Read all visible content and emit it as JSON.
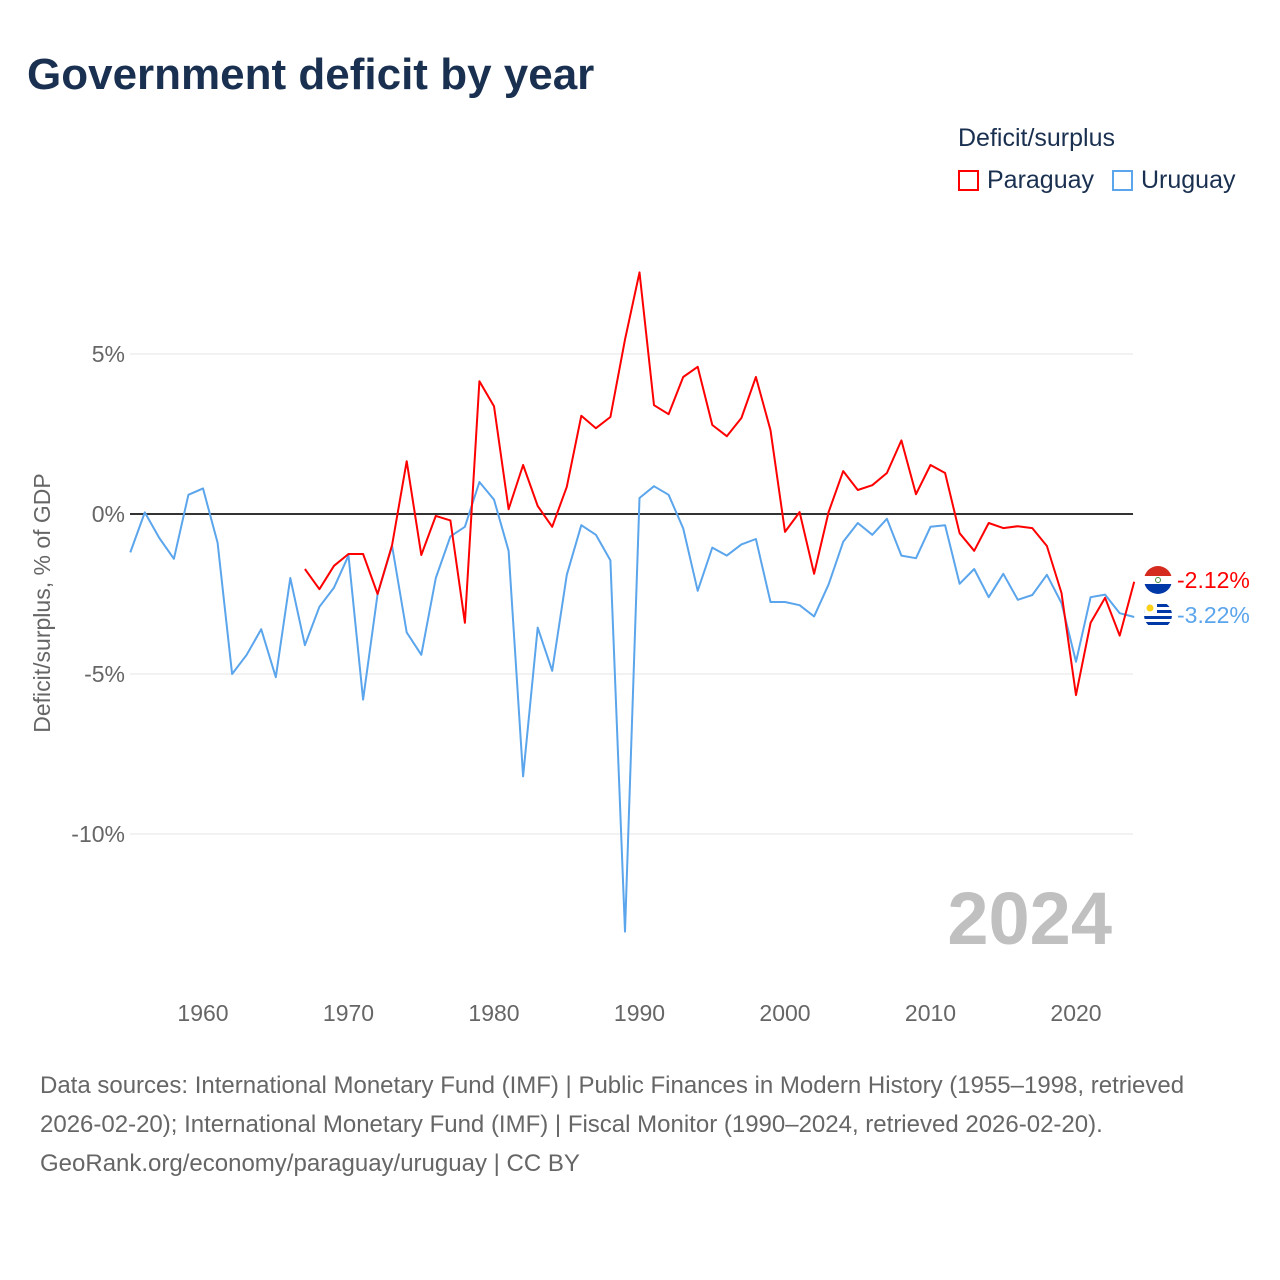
{
  "title": "Government deficit by year",
  "legend": {
    "title": "Deficit/surplus",
    "items": [
      {
        "name": "Paraguay",
        "color": "#ff0000"
      },
      {
        "name": "Uruguay",
        "color": "#5aa5ec"
      }
    ]
  },
  "year_watermark": "2024",
  "sources": {
    "line1": "Data sources: International Monetary Fund (IMF) | Public Finances in Modern History (1955–1998, retrieved 2026-02-20); International Monetary Fund (IMF) | Fiscal Monitor (1990–2024, retrieved 2026-02-20).",
    "line2": "GeoRank.org/economy/paraguay/uruguay | CC BY"
  },
  "chart_data": {
    "type": "line",
    "title": "Government deficit by year",
    "xlabel": "",
    "ylabel": "Deficit/surplus, % of GDP",
    "xlim": [
      1955,
      2024
    ],
    "ylim": [
      -14,
      8
    ],
    "xticks": [
      1960,
      1970,
      1980,
      1990,
      2000,
      2010,
      2020
    ],
    "yticks": [
      {
        "v": 5,
        "label": "5%"
      },
      {
        "v": 0,
        "label": "0%"
      },
      {
        "v": -5,
        "label": "-5%"
      },
      {
        "v": -10,
        "label": "-10%"
      }
    ],
    "grid": true,
    "legend_position": "top-right",
    "series": [
      {
        "name": "Paraguay",
        "color": "#ff0000",
        "start": 1967,
        "end_label": "-2.12%",
        "values": [
          -1.72,
          -2.35,
          -1.62,
          -1.25,
          -1.25,
          -2.5,
          -0.97,
          1.65,
          -1.28,
          -0.06,
          -0.2,
          -3.4,
          4.15,
          3.37,
          0.15,
          1.53,
          0.25,
          -0.4,
          0.85,
          3.07,
          2.68,
          3.03,
          5.45,
          7.55,
          3.4,
          3.12,
          4.28,
          4.6,
          2.78,
          2.43,
          3.0,
          4.28,
          2.62,
          -0.56,
          0.06,
          -1.87,
          0.06,
          1.34,
          0.75,
          0.9,
          1.28,
          2.3,
          0.62,
          1.53,
          1.28,
          -0.6,
          -1.15,
          -0.28,
          -0.44,
          -0.38,
          -0.44,
          -1.0,
          -2.47,
          -5.66,
          -3.4,
          -2.62,
          -3.8,
          -2.12
        ]
      },
      {
        "name": "Uruguay",
        "color": "#5aa5ec",
        "start": 1955,
        "end_label": "-3.22%",
        "values": [
          -1.2,
          0.05,
          -0.75,
          -1.4,
          0.6,
          0.8,
          -0.9,
          -5.0,
          -4.4,
          -3.6,
          -5.1,
          -2.0,
          -4.1,
          -2.9,
          -2.3,
          -1.3,
          -5.8,
          -2.5,
          -1.0,
          -3.7,
          -4.4,
          -2.0,
          -0.7,
          -0.4,
          1.0,
          0.45,
          -1.15,
          -8.2,
          -3.55,
          -4.9,
          -1.9,
          -0.35,
          -0.65,
          -1.45,
          -13.05,
          0.5,
          0.87,
          0.6,
          -0.45,
          -2.4,
          -1.05,
          -1.3,
          -0.95,
          -0.78,
          -2.75,
          -2.75,
          -2.85,
          -3.2,
          -2.2,
          -0.87,
          -0.28,
          -0.65,
          -0.15,
          -1.3,
          -1.38,
          -0.4,
          -0.35,
          -2.18,
          -1.72,
          -2.6,
          -1.87,
          -2.68,
          -2.53,
          -1.9,
          -2.78,
          -4.62,
          -2.6,
          -2.52,
          -3.1,
          -3.22
        ]
      }
    ]
  }
}
